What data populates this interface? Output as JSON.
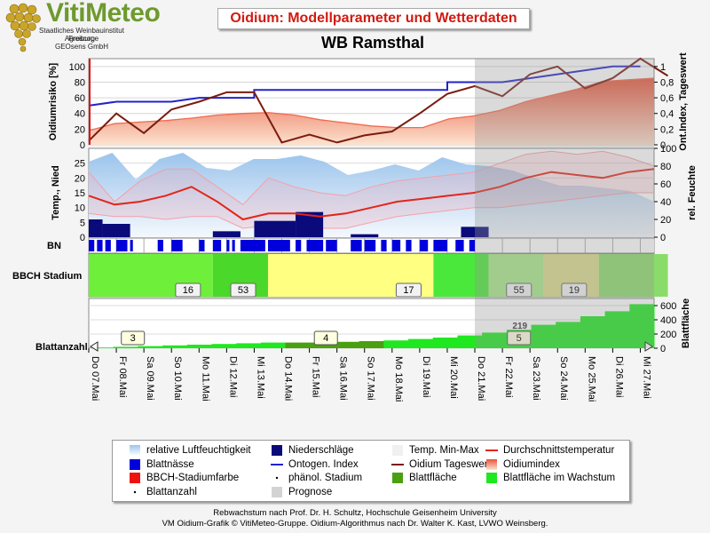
{
  "header": {
    "logo_text": "VitiMeteo",
    "logo_lines": [
      "Staatliches Weinbauinstitut Freiburg",
      "Agroscope",
      "GEOsens GmbH"
    ],
    "title": "Oidium: Modellparameter und Wetterdaten",
    "station": "WB Ramsthal"
  },
  "colors": {
    "title_red": "#d21a10",
    "ontogen_blue": "#2222cc",
    "oidium_brown": "#7a1c10",
    "temp_red": "#e3261a",
    "rain_navy": "#0a0a7a",
    "humidity_blue": "#a9cbef",
    "leaf_green": "#20e820",
    "leaf_dark": "#4aa010",
    "forecast_gray": "#d3d3d3"
  },
  "chart_data": {
    "type": "line",
    "x": [
      "Do 07.Mai",
      "Fr 08.Mai",
      "Sa 09.Mai",
      "So 10.Mai",
      "Mo 11.Mai",
      "Di 12.Mai",
      "Mi 13.Mai",
      "Do 14.Mai",
      "Fr 15.Mai",
      "Sa 16.Mai",
      "So 17.Mai",
      "Mo 18.Mai",
      "Di 19.Mai",
      "Mi 20.Mai",
      "Do 21.Mai",
      "Fr 22.Mai",
      "Sa 23.Mai",
      "So 24.Mai",
      "Mo 25.Mai",
      "Di 26.Mai",
      "Mi 27.Mai"
    ],
    "forecast_start": "Do 21.Mai",
    "forecast_label": "Prognose",
    "panels": {
      "risk": {
        "ylabel_left": "Oidiumrisiko [%]",
        "ylabel_right": "Ont.Index, Tageswert",
        "yticks_left": [
          "0",
          "20",
          "40",
          "60",
          "80",
          "100"
        ],
        "yticks_right": [
          "0",
          "0,2",
          "0,4",
          "0,6",
          "0,8",
          "1"
        ],
        "ylim_left": [
          0,
          110
        ],
        "ylim_right": [
          0,
          1.1
        ],
        "series": [
          {
            "name": "Oidiumindex",
            "axis": "left",
            "values": [
              18,
              27,
              29,
              31,
              34,
              38,
              40,
              41,
              38,
              32,
              28,
              24,
              22,
              22,
              33,
              37,
              44,
              55,
              63,
              71,
              81,
              83,
              85
            ]
          },
          {
            "name": "Ontogen. Index",
            "axis": "right",
            "x_half_days": [
              0,
              2,
              2,
              6,
              6,
              8,
              10,
              10,
              12,
              12,
              14,
              14,
              16,
              16,
              18,
              18,
              20,
              22,
              24,
              26,
              26,
              28,
              30,
              30,
              34,
              34,
              38,
              38,
              40
            ],
            "values": [
              0.5,
              0.55,
              0.55,
              0.55,
              0.55,
              0.6,
              0.6,
              0.6,
              0.6,
              0.7,
              0.7,
              0.7,
              0.7,
              0.7,
              0.7,
              0.7,
              0.7,
              0.7,
              0.7,
              0.7,
              0.8,
              0.8,
              0.8,
              0.8,
              0.9,
              0.9,
              1.0,
              1.0,
              1.0
            ]
          },
          {
            "name": "Oidium Tageswert",
            "axis": "right",
            "values": [
              0.05,
              0.4,
              0.15,
              0.45,
              0.55,
              0.67,
              0.67,
              0.03,
              0.13,
              0.03,
              0.12,
              0.17,
              0.4,
              0.65,
              0.75,
              0.62,
              0.9,
              1.0,
              0.72,
              0.85,
              1.1,
              0.88
            ]
          }
        ]
      },
      "weather": {
        "ylabel_left": "Temp., Nied",
        "ylabel_right": "rel. Feuchte",
        "yticks_left": [
          "0",
          "5",
          "10",
          "15",
          "20",
          "25"
        ],
        "yticks_right": [
          "0",
          "20",
          "40",
          "60",
          "80",
          "100"
        ],
        "ylim_left": [
          0,
          30
        ],
        "ylim_right": [
          0,
          100
        ],
        "series": [
          {
            "name": "relative Luftfeuchtigkeit",
            "values": [
              85,
              95,
              65,
              88,
              95,
              78,
              75,
              88,
              88,
              92,
              85,
              70,
              75,
              82,
              75,
              90,
              82,
              80,
              75,
              66,
              58,
              58,
              55,
              52,
              40
            ]
          },
          {
            "name": "Temp. Max",
            "values": [
              22,
              12,
              19,
              23,
              23,
              17,
              11,
              20,
              17,
              15,
              14,
              17,
              19,
              20,
              21,
              22,
              25,
              28,
              29,
              28,
              29,
              27,
              24
            ]
          },
          {
            "name": "Temp. Min",
            "values": [
              8,
              7,
              7,
              6,
              7,
              7,
              3,
              4,
              4,
              3,
              3,
              5,
              7,
              8,
              9,
              10,
              10,
              11,
              12,
              13,
              14,
              15,
              15
            ]
          },
          {
            "name": "Durchschnittstemperatur",
            "values": [
              14,
              11,
              12,
              14,
              17,
              12,
              6,
              8,
              8,
              7,
              8,
              10,
              12,
              13,
              14,
              15,
              17,
              20,
              22,
              21,
              20,
              22,
              23
            ]
          },
          {
            "name": "Niederschläge",
            "bars": [
              [
                0.0,
                0.5,
                6
              ],
              [
                0.5,
                1.5,
                4.5
              ],
              [
                4.5,
                5.5,
                2
              ],
              [
                6.0,
                7.5,
                5.5
              ],
              [
                7.5,
                8.5,
                8.5
              ],
              [
                9.5,
                10.5,
                1
              ],
              [
                13.5,
                14.5,
                3.5
              ]
            ]
          }
        ]
      },
      "bn": {
        "label": "BN",
        "blattnaesse": [
          [
            0.0,
            0.2
          ],
          [
            0.3,
            0.5
          ],
          [
            0.6,
            0.8
          ],
          [
            1.0,
            1.4
          ],
          [
            1.5,
            1.6
          ],
          [
            2.5,
            2.7
          ],
          [
            3.0,
            3.4
          ],
          [
            4.0,
            4.2
          ],
          [
            4.5,
            4.8
          ],
          [
            5.0,
            5.1
          ],
          [
            5.2,
            5.3
          ],
          [
            5.5,
            6.4
          ],
          [
            6.5,
            7.3
          ],
          [
            7.5,
            7.7
          ],
          [
            7.9,
            8.5
          ],
          [
            8.6,
            9.0
          ],
          [
            9.5,
            9.9
          ],
          [
            10.0,
            10.4
          ],
          [
            10.6,
            10.8
          ],
          [
            11.0,
            11.3
          ],
          [
            11.5,
            11.7
          ],
          [
            12.0,
            12.3
          ],
          [
            12.5,
            13.0
          ],
          [
            13.3,
            13.6
          ],
          [
            13.8,
            14.0
          ]
        ]
      },
      "bbch": {
        "label": "BBCH Stadium",
        "segments": [
          {
            "from": 0,
            "to": 4.5,
            "color": "#6ef03a"
          },
          {
            "from": 4.5,
            "to": 6.5,
            "color": "#4ad82a"
          },
          {
            "from": 6.5,
            "to": 12.5,
            "color": "#ffff82"
          },
          {
            "from": 12.5,
            "to": 14.5,
            "color": "#4ae83a"
          },
          {
            "from": 14.5,
            "to": 16.5,
            "color": "#aaea8a"
          },
          {
            "from": 16.5,
            "to": 18.5,
            "color": "#dadc8a"
          },
          {
            "from": 18.5,
            "to": 21.0,
            "color": "#8adc6a"
          }
        ],
        "labels": [
          {
            "text": "16",
            "day": 3.6
          },
          {
            "text": "53",
            "day": 5.6
          },
          {
            "text": "17",
            "day": 11.6
          },
          {
            "text": "55",
            "day": 15.6
          },
          {
            "text": "19",
            "day": 17.6
          }
        ]
      },
      "leaf": {
        "ylabel_left": "Blattanzahl",
        "ylabel_right": "Blattfläche",
        "yticks_right": [
          "0",
          "200",
          "400",
          "600"
        ],
        "ylim_right": [
          0,
          700
        ],
        "blattflaeche": [
          10,
          20,
          30,
          40,
          50,
          60,
          70,
          80,
          80,
          80,
          90,
          100,
          110,
          130,
          150,
          180,
          220,
          260,
          330,
          370,
          450,
          520,
          620
        ],
        "wachstum_days": [
          7.0,
          11.0
        ],
        "blattanzahl_labels": [
          {
            "text": "3",
            "day": 1.6
          },
          {
            "text": "4",
            "day": 8.6
          },
          {
            "text": "5",
            "day": 15.6
          }
        ],
        "annotations": [
          {
            "text": "219",
            "day": 15.6
          }
        ]
      }
    }
  },
  "legend": {
    "items": [
      {
        "label": "relative Luftfeuchtigkeit",
        "symbol": "humidity"
      },
      {
        "label": "Niederschläge",
        "symbol": "rain"
      },
      {
        "label": "Temp. Min-Max",
        "symbol": "tminmax"
      },
      {
        "label": "Durchschnittstemperatur",
        "symbol": "tavg"
      },
      {
        "label": "Blattnässe",
        "symbol": "wet"
      },
      {
        "label": "Ontogen. Index",
        "symbol": "onto"
      },
      {
        "label": "Oidium Tageswert",
        "symbol": "oidday"
      },
      {
        "label": "Oidiumindex",
        "symbol": "oidindex"
      },
      {
        "label": "BBCH-Stadiumfarbe",
        "symbol": "bbch"
      },
      {
        "label": "phänol. Stadium",
        "symbol": "dot"
      },
      {
        "label": "Blattfläche",
        "symbol": "leafarea"
      },
      {
        "label": "Blattfläche im Wachstum",
        "symbol": "leafgrow"
      },
      {
        "label": "Blattanzahl",
        "symbol": "dot"
      },
      {
        "label": "Prognose",
        "symbol": "forecast"
      }
    ]
  },
  "footer": {
    "line1": "Rebwachstum nach Prof. Dr. H. Schultz, Hochschule Geisenheim University",
    "line2": "VM Oidium-Grafik © VitiMeteo-Gruppe. Oidium-Algorithmus nach Dr. Walter K. Kast, LVWO Weinsberg."
  }
}
